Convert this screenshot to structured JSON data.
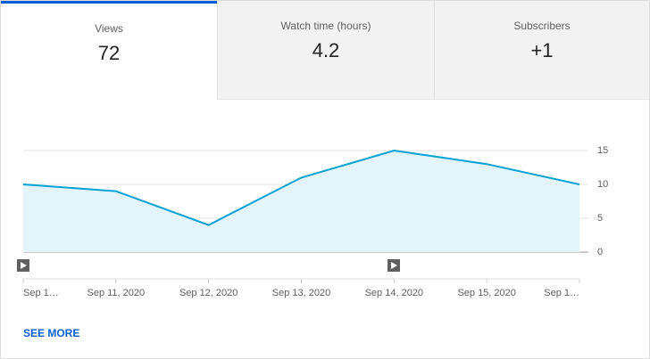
{
  "tabs": [
    {
      "label": "Views",
      "value": 72
    },
    {
      "label": "Watch time (hours)",
      "value": 4.2
    },
    {
      "label": "Subscribers",
      "value": "+1"
    }
  ],
  "chart_data": {
    "type": "area",
    "categories": [
      "Sep 1…",
      "Sep 11, 2020",
      "Sep 12, 2020",
      "Sep 13, 2020",
      "Sep 14, 2020",
      "Sep 15, 2020",
      "Sep 1…"
    ],
    "values": [
      10,
      9,
      4,
      11,
      15,
      13,
      10
    ],
    "color": "#00a1d3",
    "fill": "#e3f4fa",
    "ylim": [
      0,
      15
    ],
    "yticks": [
      0,
      5,
      10,
      15
    ],
    "grid": true
  },
  "see_more": "SEE MORE"
}
